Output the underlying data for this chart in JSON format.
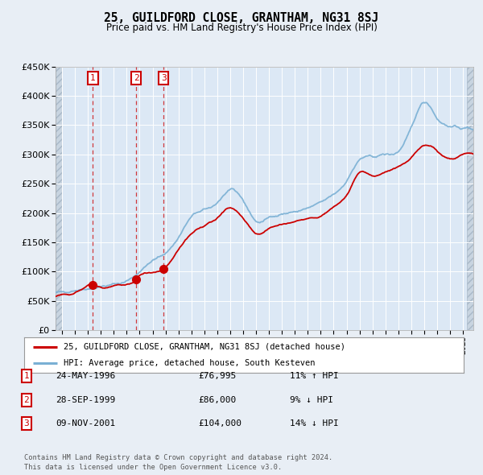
{
  "title": "25, GUILDFORD CLOSE, GRANTHAM, NG31 8SJ",
  "subtitle": "Price paid vs. HM Land Registry's House Price Index (HPI)",
  "legend_line1": "25, GUILDFORD CLOSE, GRANTHAM, NG31 8SJ (detached house)",
  "legend_line2": "HPI: Average price, detached house, South Kesteven",
  "transactions": [
    {
      "num": 1,
      "date": "24-MAY-1996",
      "price": 76995,
      "year": 1996.39,
      "hpi_pct": "11% ↑ HPI"
    },
    {
      "num": 2,
      "date": "28-SEP-1999",
      "price": 86000,
      "year": 1999.74,
      "hpi_pct": "9% ↓ HPI"
    },
    {
      "num": 3,
      "date": "09-NOV-2001",
      "price": 104000,
      "year": 2001.86,
      "hpi_pct": "14% ↓ HPI"
    }
  ],
  "footer1": "Contains HM Land Registry data © Crown copyright and database right 2024.",
  "footer2": "This data is licensed under the Open Government Licence v3.0.",
  "red_color": "#cc0000",
  "blue_color": "#7ab0d4",
  "background_color": "#e8eef5",
  "plot_bg_color": "#dce8f5",
  "grid_color": "#ffffff",
  "ylim": [
    0,
    450000
  ],
  "yticks": [
    0,
    50000,
    100000,
    150000,
    200000,
    250000,
    300000,
    350000,
    400000,
    450000
  ],
  "xlim_start": 1993.5,
  "xlim_end": 2025.8,
  "hpi_key_years": [
    1993.5,
    1994,
    1995,
    1996,
    1997,
    1998,
    1999,
    2000,
    2001,
    2002,
    2003,
    2004,
    2005,
    2006,
    2007,
    2008,
    2009,
    2010,
    2011,
    2012,
    2013,
    2014,
    2015,
    2016,
    2017,
    2018,
    2019,
    2020,
    2021,
    2022,
    2023,
    2024,
    2025,
    2025.8
  ],
  "hpi_key_vals": [
    63000,
    65000,
    68000,
    71000,
    74000,
    78000,
    84000,
    100000,
    118000,
    132000,
    158000,
    193000,
    205000,
    218000,
    238000,
    222000,
    186000,
    192000,
    198000,
    202000,
    208000,
    218000,
    232000,
    255000,
    290000,
    296000,
    300000,
    305000,
    345000,
    390000,
    362000,
    348000,
    345000,
    344000
  ],
  "paid_key_years": [
    1993.5,
    1994,
    1995,
    1996.39,
    1997,
    1998,
    1999.74,
    2000,
    2001.86,
    2003,
    2004,
    2005,
    2006,
    2007,
    2008,
    2009,
    2010,
    2011,
    2012,
    2013,
    2014,
    2015,
    2016,
    2017,
    2018,
    2019,
    2020,
    2021,
    2022,
    2023,
    2024,
    2025,
    2025.8
  ],
  "paid_key_vals": [
    58000,
    60000,
    63000,
    76995,
    72000,
    76000,
    86000,
    92000,
    104000,
    138000,
    165000,
    178000,
    192000,
    208000,
    192000,
    165000,
    173000,
    180000,
    185000,
    190000,
    195000,
    210000,
    230000,
    268000,
    263000,
    270000,
    278000,
    295000,
    315000,
    305000,
    292000,
    300000,
    300000
  ]
}
